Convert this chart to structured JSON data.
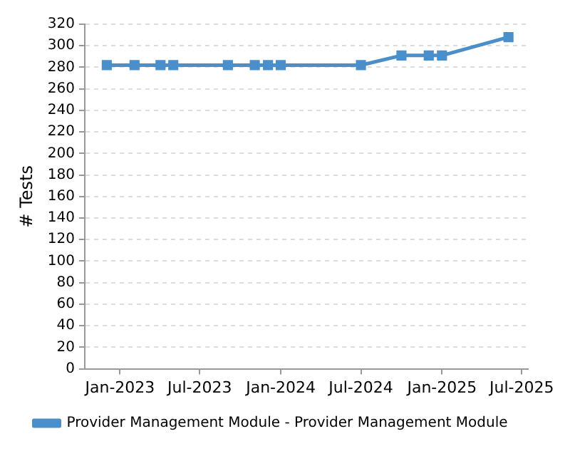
{
  "chart_data": {
    "type": "line",
    "ylabel": "# Tests",
    "x": [
      "2022-12-02",
      "2023-02-03",
      "2023-04-03",
      "2023-05-02",
      "2023-09-03",
      "2023-11-03",
      "2023-12-03",
      "2024-01-01",
      "2024-07-01",
      "2024-10-01",
      "2024-12-02",
      "2025-01-01",
      "2025-06-01"
    ],
    "series": [
      {
        "name": "Provider Management Module - Provider Management Module",
        "color": "#4a8fc9",
        "values": [
          282,
          282,
          282,
          282,
          282,
          282,
          282,
          282,
          282,
          291,
          291,
          291,
          308
        ]
      }
    ],
    "xlim": [
      "2022-10-13",
      "2025-07-15"
    ],
    "xticks": [
      {
        "value": "2023-01",
        "label": "Jan-2023"
      },
      {
        "value": "2023-07",
        "label": "Jul-2023"
      },
      {
        "value": "2024-01",
        "label": "Jan-2024"
      },
      {
        "value": "2024-07",
        "label": "Jul-2024"
      },
      {
        "value": "2025-01",
        "label": "Jan-2025"
      },
      {
        "value": "2025-07",
        "label": "Jul-2025"
      }
    ],
    "ylim": [
      0,
      320
    ],
    "yticks": [
      0,
      20,
      40,
      60,
      80,
      100,
      120,
      140,
      160,
      180,
      200,
      220,
      240,
      260,
      280,
      300,
      320
    ],
    "grid": "y",
    "legend": "bottom",
    "marker": "square",
    "line_style": "solid"
  }
}
